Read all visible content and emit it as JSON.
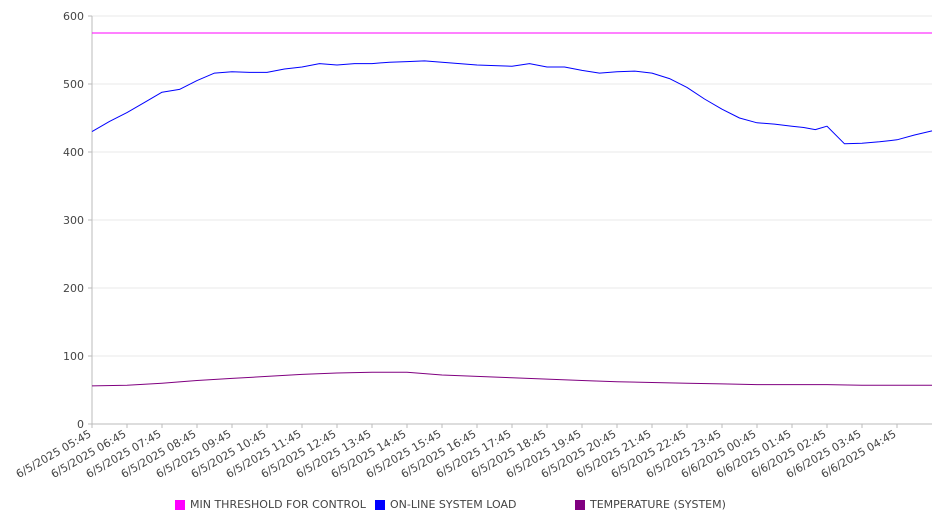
{
  "chart_data": {
    "type": "line",
    "ylim": [
      0,
      600
    ],
    "yticks": [
      0,
      100,
      200,
      300,
      400,
      500,
      600
    ],
    "xlim": [
      "6/5/2025 05:45",
      "6/6/2025 05:45"
    ],
    "x_tick_labels": [
      "6/5/2025 05:45",
      "6/5/2025 06:45",
      "6/5/2025 07:45",
      "6/5/2025 08:45",
      "6/5/2025 09:45",
      "6/5/2025 10:45",
      "6/5/2025 11:45",
      "6/5/2025 12:45",
      "6/5/2025 13:45",
      "6/5/2025 14:45",
      "6/5/2025 15:45",
      "6/5/2025 16:45",
      "6/5/2025 17:45",
      "6/5/2025 18:45",
      "6/5/2025 19:45",
      "6/5/2025 20:45",
      "6/5/2025 21:45",
      "6/5/2025 22:45",
      "6/5/2025 23:45",
      "6/6/2025 00:45",
      "6/6/2025 01:45",
      "6/6/2025 02:45",
      "6/6/2025 03:45",
      "6/6/2025 04:45"
    ],
    "grid": "horizontal",
    "legend_position": "bottom",
    "series": [
      {
        "name": "MIN THRESHOLD FOR CONTROL",
        "color": "#ff00ff",
        "x": [
          "6/5/2025 05:45",
          "6/6/2025 05:45"
        ],
        "values": [
          575,
          575
        ]
      },
      {
        "name": "ON-LINE SYSTEM LOAD",
        "color": "#0000ff",
        "x": [
          "6/5/2025 05:45",
          "6/5/2025 06:15",
          "6/5/2025 06:45",
          "6/5/2025 07:15",
          "6/5/2025 07:45",
          "6/5/2025 08:15",
          "6/5/2025 08:45",
          "6/5/2025 09:15",
          "6/5/2025 09:45",
          "6/5/2025 10:15",
          "6/5/2025 10:45",
          "6/5/2025 11:15",
          "6/5/2025 11:45",
          "6/5/2025 12:15",
          "6/5/2025 12:45",
          "6/5/2025 13:15",
          "6/5/2025 13:45",
          "6/5/2025 14:15",
          "6/5/2025 14:45",
          "6/5/2025 15:15",
          "6/5/2025 15:45",
          "6/5/2025 16:15",
          "6/5/2025 16:45",
          "6/5/2025 17:15",
          "6/5/2025 17:45",
          "6/5/2025 18:15",
          "6/5/2025 18:45",
          "6/5/2025 19:15",
          "6/5/2025 19:45",
          "6/5/2025 20:15",
          "6/5/2025 20:45",
          "6/5/2025 21:15",
          "6/5/2025 21:45",
          "6/5/2025 22:15",
          "6/5/2025 22:45",
          "6/5/2025 23:15",
          "6/5/2025 23:45",
          "6/6/2025 00:15",
          "6/6/2025 00:45",
          "6/6/2025 01:15",
          "6/6/2025 01:45",
          "6/6/2025 02:05",
          "6/6/2025 02:25",
          "6/6/2025 02:45",
          "6/6/2025 03:15",
          "6/6/2025 03:45",
          "6/6/2025 04:15",
          "6/6/2025 04:45",
          "6/6/2025 05:15",
          "6/6/2025 05:45"
        ],
        "values": [
          430,
          445,
          458,
          473,
          488,
          492,
          505,
          516,
          518,
          517,
          517,
          522,
          525,
          530,
          528,
          530,
          530,
          532,
          533,
          534,
          532,
          530,
          528,
          527,
          526,
          530,
          525,
          525,
          520,
          516,
          518,
          519,
          516,
          508,
          495,
          478,
          463,
          450,
          443,
          441,
          438,
          436,
          433,
          438,
          412,
          413,
          415,
          418,
          425,
          431
        ]
      },
      {
        "name": "TEMPERATURE (SYSTEM)",
        "color": "#800080",
        "x": [
          "6/5/2025 05:45",
          "6/5/2025 06:45",
          "6/5/2025 07:45",
          "6/5/2025 08:45",
          "6/5/2025 09:45",
          "6/5/2025 10:45",
          "6/5/2025 11:45",
          "6/5/2025 12:45",
          "6/5/2025 13:45",
          "6/5/2025 14:45",
          "6/5/2025 15:45",
          "6/5/2025 16:45",
          "6/5/2025 17:45",
          "6/5/2025 18:45",
          "6/5/2025 19:45",
          "6/5/2025 20:45",
          "6/5/2025 21:45",
          "6/5/2025 22:45",
          "6/5/2025 23:45",
          "6/6/2025 00:45",
          "6/6/2025 01:45",
          "6/6/2025 02:45",
          "6/6/2025 03:45",
          "6/6/2025 04:45",
          "6/6/2025 05:45"
        ],
        "values": [
          56,
          57,
          60,
          64,
          67,
          70,
          73,
          75,
          76,
          76,
          72,
          70,
          68,
          66,
          64,
          62,
          61,
          60,
          59,
          58,
          58,
          58,
          57,
          57,
          57
        ]
      }
    ]
  }
}
